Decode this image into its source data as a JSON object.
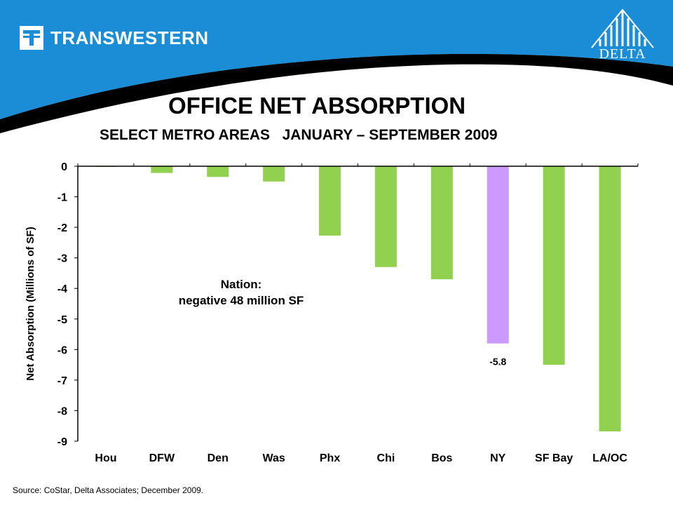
{
  "header": {
    "brand_name": "TRANSWESTERN",
    "partner_name": "DELTA",
    "colors": {
      "band": "#1a8dd6",
      "swoosh": "#000000"
    }
  },
  "title": "OFFICE NET ABSORPTION",
  "subtitle": "SELECT METRO AREAS   JANUARY – SEPTEMBER 2009",
  "chart_data": {
    "type": "bar",
    "categories": [
      "Hou",
      "DFW",
      "Den",
      "Was",
      "Phx",
      "Chi",
      "Bos",
      "NY",
      "SF Bay",
      "LA/OC"
    ],
    "values": [
      -0.02,
      -0.22,
      -0.35,
      -0.5,
      -2.27,
      -3.3,
      -3.7,
      -5.8,
      -6.5,
      -8.68
    ],
    "colors": [
      "#92d050",
      "#92d050",
      "#92d050",
      "#92d050",
      "#92d050",
      "#92d050",
      "#92d050",
      "#cc99ff",
      "#92d050",
      "#92d050"
    ],
    "ylabel": "Net Absorption (Millions of SF)",
    "xlabel": "",
    "ylim": [
      -9,
      0
    ],
    "yticks": [
      "0",
      "-1",
      "-2",
      "-3",
      "-4",
      "-5",
      "-6",
      "-7",
      "-8",
      "-9"
    ],
    "data_labels": [
      {
        "category": "NY",
        "text": "-5.8"
      }
    ],
    "annotation": [
      "Nation:",
      "negative 48 million SF"
    ],
    "grid": false,
    "legend": "none"
  },
  "source": "Source: CoStar, Delta Associates; December 2009."
}
